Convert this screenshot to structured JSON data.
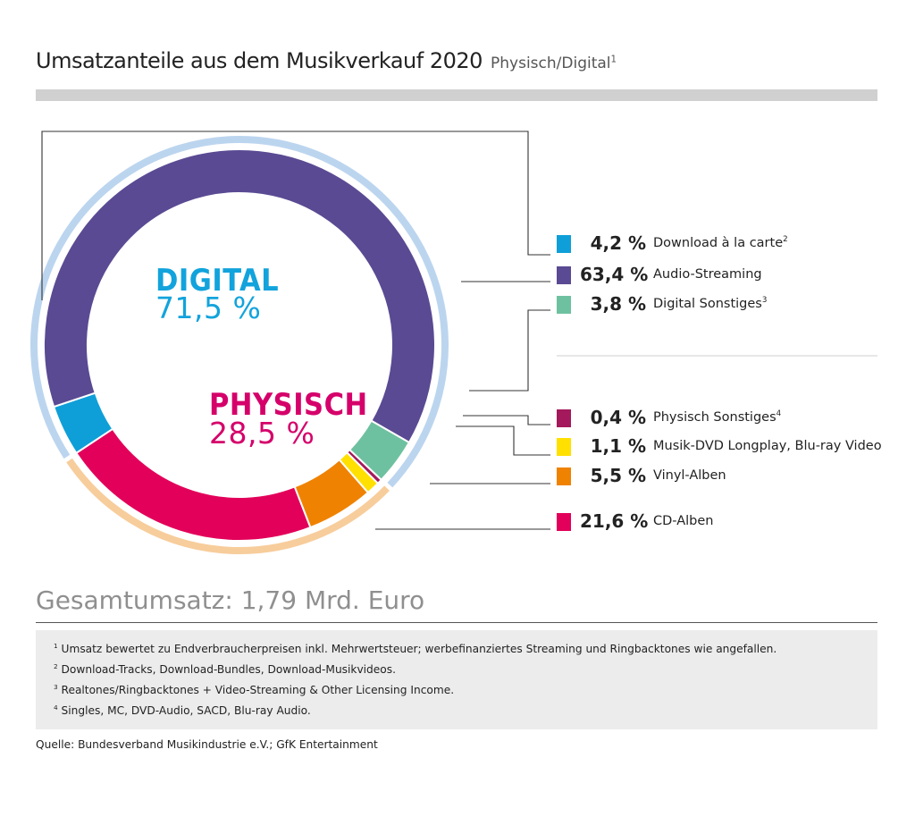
{
  "header": {
    "title": "Umsatzanteile aus dem Musikverkauf 2020",
    "subtitle": "Physisch/Digital",
    "subtitle_note": "1"
  },
  "groups": {
    "digital": {
      "name": "DIGITAL",
      "pct": "71,5 %",
      "color": "#12a3dc",
      "ring_color": "#bcd5ef"
    },
    "physisch": {
      "name": "PHYSISCH",
      "pct": "28,5 %",
      "color": "#d5006a",
      "ring_color": "#f7cd9c"
    }
  },
  "chart_data": {
    "type": "pie",
    "title": "Umsatzanteile aus dem Musikverkauf 2020",
    "unit": "%",
    "slices": [
      {
        "group": "digital",
        "label": "Download à la carte",
        "note": "2",
        "value": 4.2,
        "display": "4,2 %",
        "color": "#0f9fd8"
      },
      {
        "group": "digital",
        "label": "Audio-Streaming",
        "note": "",
        "value": 63.4,
        "display": "63,4 %",
        "color": "#5a4a93"
      },
      {
        "group": "digital",
        "label": "Digital Sonstiges",
        "note": "3",
        "value": 3.8,
        "display": "3,8 %",
        "color": "#6ec1a0"
      },
      {
        "group": "physisch",
        "label": "Physisch Sonstiges",
        "note": "4",
        "value": 0.4,
        "display": "0,4 %",
        "color": "#a3195b"
      },
      {
        "group": "physisch",
        "label": "Musik-DVD Longplay, Blu-ray Video",
        "note": "",
        "value": 1.1,
        "display": "1,1 %",
        "color": "#ffe000"
      },
      {
        "group": "physisch",
        "label": "Vinyl-Alben",
        "note": "",
        "value": 5.5,
        "display": "5,5 %",
        "color": "#ef8200"
      },
      {
        "group": "physisch",
        "label": "CD-Alben",
        "note": "",
        "value": 21.6,
        "display": "21,6 %",
        "color": "#e2005a"
      }
    ]
  },
  "total": "Gesamtumsatz: 1,79 Mrd. Euro",
  "footnotes": [
    {
      "num": "1",
      "text": "Umsatz bewertet zu Endverbraucherpreisen inkl. Mehrwertsteuer; werbefinanziertes Streaming und Ringbacktones wie angefallen."
    },
    {
      "num": "2",
      "text": "Download-Tracks, Download-Bundles, Download-Musikvideos."
    },
    {
      "num": "3",
      "text": "Realtones/Ringbacktones + Video-Streaming & Other Licensing Income."
    },
    {
      "num": "4",
      "text": "Singles, MC, DVD-Audio, SACD, Blu-ray Audio."
    }
  ],
  "source": "Quelle: Bundesverband Musikindustrie e.V.; GfK Entertainment"
}
